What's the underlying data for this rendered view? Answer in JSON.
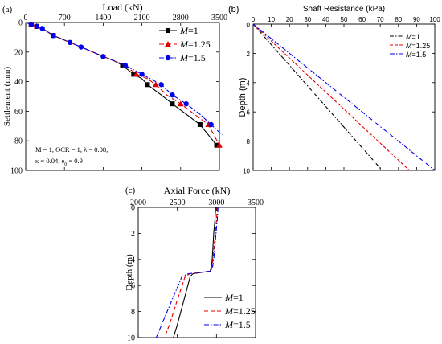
{
  "chart_data": [
    {
      "panel_label": "(a)",
      "type": "line",
      "title": "",
      "xlabel": "Load (kN)",
      "ylabel": "Settlement (mm)",
      "xlim": [
        0,
        3500
      ],
      "ylim": [
        0,
        100
      ],
      "x_axis_position": "top",
      "y_inverted": true,
      "xticks": [
        "0",
        "700",
        "1400",
        "2100",
        "2800",
        "3500"
      ],
      "yticks": [
        "0",
        "20",
        "40",
        "60",
        "80",
        "100"
      ],
      "legend_position": "top-right",
      "annotation": {
        "line1_prefix": "M = 1, OCR = 1, λ = 0.08,",
        "line2_prefix": "κ = 0.04, e",
        "line2_sub": "0",
        "line2_suffix": " = 0.9"
      },
      "series": [
        {
          "name_italic": "M",
          "name_rest": "=1",
          "color": "#000000",
          "marker": "square",
          "dash": "solid",
          "points": [
            [
              0,
              0
            ],
            [
              50,
              0.6
            ],
            [
              100,
              1.2
            ],
            [
              150,
              1.9
            ],
            [
              200,
              2.6
            ],
            [
              300,
              4
            ],
            [
              500,
              8.8
            ],
            [
              800,
              13.5
            ],
            [
              1000,
              16.6
            ],
            [
              1400,
              23
            ],
            [
              1600,
              26
            ],
            [
              1750,
              29
            ],
            [
              1950,
              35
            ],
            [
              2100,
              38
            ],
            [
              2200,
              42
            ],
            [
              2450,
              49
            ],
            [
              2650,
              55
            ],
            [
              2900,
              62
            ],
            [
              3150,
              69
            ],
            [
              3300,
              76
            ],
            [
              3450,
              83
            ]
          ],
          "marker_points": [
            [
              100,
              1.2
            ],
            [
              200,
              2.6
            ],
            [
              500,
              8.8
            ],
            [
              1750,
              29
            ],
            [
              1950,
              35
            ],
            [
              2200,
              42
            ],
            [
              2650,
              55
            ],
            [
              3150,
              69
            ],
            [
              3450,
              83
            ]
          ]
        },
        {
          "name_italic": "M",
          "name_rest": "=1.25",
          "color": "#e00000",
          "marker": "triangle",
          "dash": "6,3",
          "points": [
            [
              0,
              0
            ],
            [
              50,
              0.6
            ],
            [
              100,
              1.2
            ],
            [
              150,
              1.9
            ],
            [
              200,
              2.6
            ],
            [
              300,
              4
            ],
            [
              500,
              8.8
            ],
            [
              800,
              13.5
            ],
            [
              1000,
              16.6
            ],
            [
              1400,
              23
            ],
            [
              1600,
              26
            ],
            [
              1800,
              29
            ],
            [
              2000,
              35
            ],
            [
              2200,
              38
            ],
            [
              2350,
              42
            ],
            [
              2550,
              49
            ],
            [
              2800,
              55
            ],
            [
              3050,
              62
            ],
            [
              3300,
              69
            ],
            [
              3500,
              83
            ]
          ],
          "marker_points": [
            [
              100,
              1.2
            ],
            [
              200,
              2.6
            ],
            [
              1800,
              29
            ],
            [
              2000,
              35
            ],
            [
              2350,
              42
            ],
            [
              2800,
              55
            ],
            [
              3300,
              69
            ],
            [
              3500,
              83
            ]
          ]
        },
        {
          "name_italic": "M",
          "name_rest": "=1.5",
          "color": "#0000ee",
          "marker": "circle",
          "dash": "6,2,1.5,2",
          "points": [
            [
              0,
              0
            ],
            [
              50,
              0.6
            ],
            [
              100,
              1.2
            ],
            [
              150,
              1.9
            ],
            [
              200,
              2.6
            ],
            [
              300,
              4
            ],
            [
              500,
              8.8
            ],
            [
              800,
              13.5
            ],
            [
              1000,
              16.6
            ],
            [
              1400,
              23
            ],
            [
              1600,
              26
            ],
            [
              1800,
              29
            ],
            [
              2100,
              35
            ],
            [
              2250,
              38
            ],
            [
              2450,
              42
            ],
            [
              2650,
              49
            ],
            [
              2900,
              55
            ],
            [
              3150,
              62
            ],
            [
              3350,
              69
            ],
            [
              3550,
              76
            ]
          ],
          "marker_points": [
            [
              100,
              1.2
            ],
            [
              200,
              2.6
            ],
            [
              300,
              4
            ],
            [
              500,
              8.8
            ],
            [
              800,
              13.5
            ],
            [
              1000,
              16.6
            ],
            [
              1400,
              23
            ],
            [
              1800,
              29
            ],
            [
              2100,
              35
            ],
            [
              2450,
              42
            ],
            [
              2650,
              49
            ],
            [
              2900,
              55
            ],
            [
              3350,
              69
            ]
          ]
        }
      ]
    },
    {
      "panel_label": "(b)",
      "type": "line",
      "title": "",
      "xlabel": "Shaft Resistance (kPa)",
      "ylabel": "Depth (m)",
      "xlim": [
        0,
        100
      ],
      "ylim": [
        0,
        10
      ],
      "x_axis_position": "top",
      "y_inverted": true,
      "xticks": [
        "0",
        "10",
        "20",
        "30",
        "40",
        "50",
        "60",
        "70",
        "80",
        "90",
        "100"
      ],
      "yticks": [
        "0",
        "2",
        "4",
        "6",
        "8",
        "10"
      ],
      "legend_position": "top-right",
      "series": [
        {
          "name_italic": "M",
          "name_rest": "=1",
          "color": "#000000",
          "dash": "5,2,1.5,2",
          "points": [
            [
              0,
              0
            ],
            [
              71,
              10
            ]
          ]
        },
        {
          "name_italic": "M",
          "name_rest": "=1.25",
          "color": "#e00000",
          "dash": "4,2",
          "points": [
            [
              0,
              0
            ],
            [
              86,
              10
            ]
          ]
        },
        {
          "name_italic": "M",
          "name_rest": "=1.5",
          "color": "#0000ee",
          "dash": "6,2,1.5,2",
          "points": [
            [
              0,
              0
            ],
            [
              100,
              10
            ]
          ]
        }
      ]
    },
    {
      "panel_label": "(c)",
      "type": "line",
      "title": "",
      "xlabel": "Axial Force (kN)",
      "ylabel": "Depth (m)",
      "xlim": [
        2000,
        3500
      ],
      "ylim": [
        0,
        10
      ],
      "x_axis_position": "top",
      "y_inverted": true,
      "xticks": [
        "2000",
        "2500",
        "3000",
        "3500"
      ],
      "yticks": [
        "0",
        "2",
        "4",
        "6",
        "8",
        "10"
      ],
      "legend_position": "bottom-right",
      "series": [
        {
          "name_italic": "M",
          "name_rest": "=1",
          "color": "#000000",
          "dash": "solid",
          "points": [
            [
              2990,
              0
            ],
            [
              2980,
              1
            ],
            [
              2965,
              2
            ],
            [
              2955,
              3
            ],
            [
              2945,
              4
            ],
            [
              2935,
              4.6
            ],
            [
              2920,
              4.9
            ],
            [
              2700,
              5.1
            ],
            [
              2665,
              5.3
            ],
            [
              2590,
              7
            ],
            [
              2500,
              9
            ],
            [
              2450,
              10
            ]
          ]
        },
        {
          "name_italic": "M",
          "name_rest": "=1.25",
          "color": "#e00000",
          "dash": "5,3",
          "points": [
            [
              3010,
              0
            ],
            [
              3000,
              1
            ],
            [
              2985,
              2
            ],
            [
              2970,
              3
            ],
            [
              2955,
              4
            ],
            [
              2940,
              4.6
            ],
            [
              2920,
              4.9
            ],
            [
              2660,
              5.1
            ],
            [
              2600,
              5.3
            ],
            [
              2505,
              7
            ],
            [
              2400,
              9
            ],
            [
              2335,
              10
            ]
          ]
        },
        {
          "name_italic": "M",
          "name_rest": "=1.5",
          "color": "#0000ee",
          "dash": "6,2,1.5,2",
          "points": [
            [
              3020,
              0
            ],
            [
              3010,
              1
            ],
            [
              2995,
              2
            ],
            [
              2980,
              3
            ],
            [
              2965,
              4
            ],
            [
              2950,
              4.6
            ],
            [
              2925,
              4.9
            ],
            [
              2640,
              5.1
            ],
            [
              2560,
              5.3
            ],
            [
              2440,
              7
            ],
            [
              2300,
              9
            ],
            [
              2230,
              10
            ]
          ]
        }
      ]
    }
  ]
}
